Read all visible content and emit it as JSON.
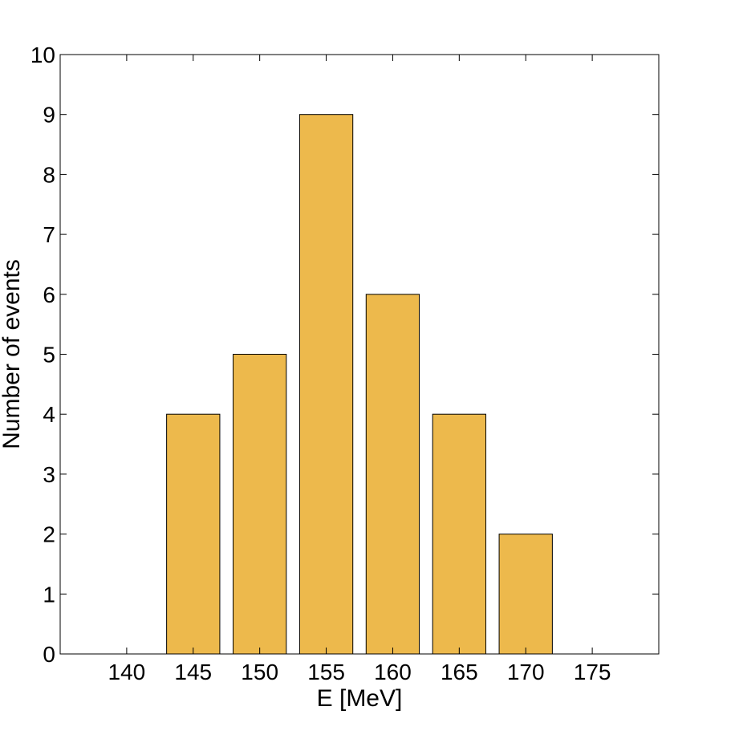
{
  "chart_data": {
    "type": "bar",
    "title": "",
    "xlabel": "E [MeV]",
    "ylabel": "Number of events",
    "categories": [
      "145",
      "150",
      "155",
      "160",
      "165",
      "170"
    ],
    "x": [
      145,
      150,
      155,
      160,
      165,
      170
    ],
    "values": [
      4,
      5,
      9,
      6,
      4,
      2
    ],
    "xlim": [
      135,
      180
    ],
    "ylim": [
      0,
      10
    ],
    "xticks": [
      140,
      145,
      150,
      155,
      160,
      165,
      170,
      175
    ],
    "yticks": [
      0,
      1,
      2,
      3,
      4,
      5,
      6,
      7,
      8,
      9,
      10
    ],
    "bar_width": 4,
    "grid": false,
    "legend": "none",
    "colors": {
      "bar_fill": "#EDB94C",
      "bar_edge": "#000000",
      "axis": "#000000",
      "background": "#ffffff"
    }
  }
}
